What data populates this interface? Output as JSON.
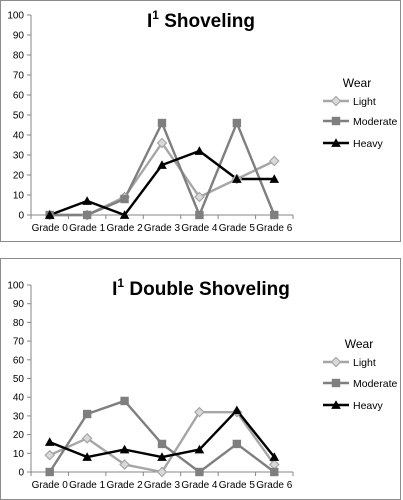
{
  "chart_data": [
    {
      "type": "line",
      "title_main": "I",
      "title_sup": "1",
      "title_rest": " Shoveling",
      "categories": [
        "Grade 0",
        "Grade 1",
        "Grade 2",
        "Grade 3",
        "Grade 4",
        "Grade 5",
        "Grade 6"
      ],
      "ylim": [
        0,
        100
      ],
      "yticks": [
        0,
        10,
        20,
        30,
        40,
        50,
        60,
        70,
        80,
        90,
        100
      ],
      "legend_title": "Wear",
      "legend_position": "right",
      "grid": false,
      "series": [
        {
          "name": "Light",
          "color": "#a6a6a6",
          "marker": "diamond",
          "values": [
            0,
            0,
            9,
            36,
            9,
            18,
            27
          ]
        },
        {
          "name": "Moderate",
          "color": "#7f7f7f",
          "marker": "square",
          "values": [
            0,
            0,
            8,
            46,
            0,
            46,
            0
          ]
        },
        {
          "name": "Heavy",
          "color": "#000000",
          "marker": "triangle",
          "values": [
            0,
            7,
            0,
            25,
            32,
            18,
            18
          ]
        }
      ]
    },
    {
      "type": "line",
      "title_main": "I",
      "title_sup": "1",
      "title_rest": " Double Shoveling",
      "categories": [
        "Grade 0",
        "Grade 1",
        "Grade 2",
        "Grade 3",
        "Grade 4",
        "Grade 5",
        "Grade 6"
      ],
      "ylim": [
        0,
        100
      ],
      "yticks": [
        0,
        10,
        20,
        30,
        40,
        50,
        60,
        70,
        80,
        90,
        100
      ],
      "legend_title": "Wear",
      "legend_position": "right",
      "grid": false,
      "series": [
        {
          "name": "Light",
          "color": "#a6a6a6",
          "marker": "diamond",
          "values": [
            9,
            18,
            4,
            0,
            32,
            32,
            4
          ]
        },
        {
          "name": "Moderate",
          "color": "#7f7f7f",
          "marker": "square",
          "values": [
            0,
            31,
            38,
            15,
            0,
            15,
            0
          ]
        },
        {
          "name": "Heavy",
          "color": "#000000",
          "marker": "triangle",
          "values": [
            16,
            8,
            12,
            8,
            12,
            33,
            8
          ]
        }
      ]
    }
  ]
}
